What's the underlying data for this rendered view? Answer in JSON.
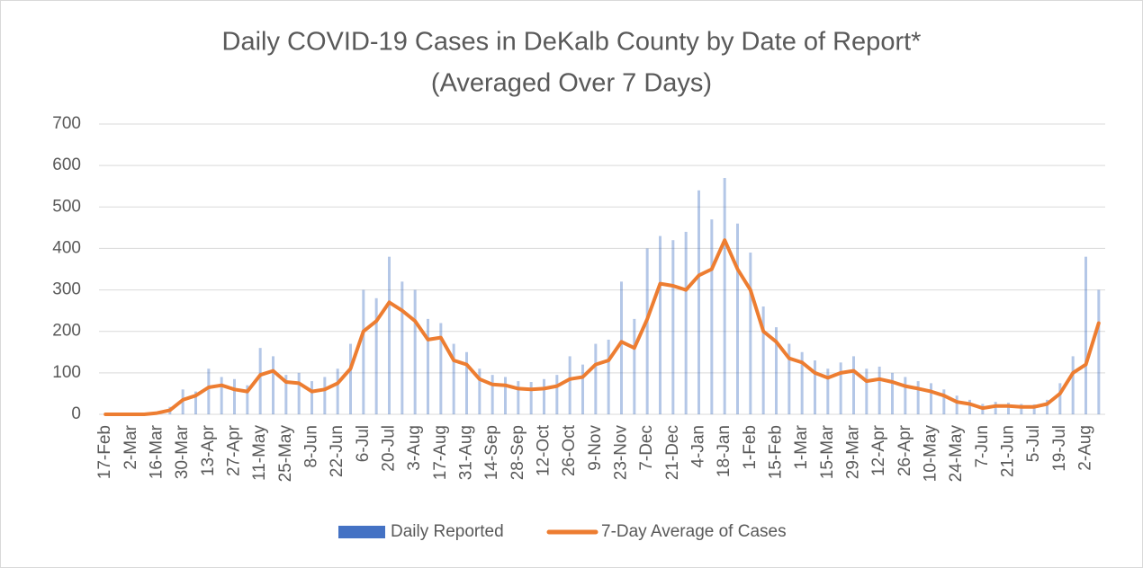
{
  "chart_data": {
    "type": "bar_line",
    "title": [
      "Daily COVID-19 Cases in DeKalb County by Date of Report*",
      "(Averaged Over 7 Days)"
    ],
    "categories": [
      "17-Feb",
      null,
      "2-Mar",
      null,
      "16-Mar",
      null,
      "30-Mar",
      null,
      "13-Apr",
      null,
      "27-Apr",
      null,
      "11-May",
      null,
      "25-May",
      null,
      "8-Jun",
      null,
      "22-Jun",
      null,
      "6-Jul",
      null,
      "20-Jul",
      null,
      "3-Aug",
      null,
      "17-Aug",
      null,
      "31-Aug",
      null,
      "14-Sep",
      null,
      "28-Sep",
      null,
      "12-Oct",
      null,
      "26-Oct",
      null,
      "9-Nov",
      null,
      "23-Nov",
      null,
      "7-Dec",
      null,
      "21-Dec",
      null,
      "4-Jan",
      null,
      "18-Jan",
      null,
      "1-Feb",
      null,
      "15-Feb",
      null,
      "1-Mar",
      null,
      "15-Mar",
      null,
      "29-Mar",
      null,
      "12-Apr",
      null,
      "26-Apr",
      null,
      "10-May",
      null,
      "24-May",
      null,
      "7-Jun",
      null,
      "21-Jun",
      null,
      "5-Jul",
      null,
      "19-Jul",
      null,
      "2-Aug",
      null
    ],
    "series": [
      {
        "name": "Daily Reported",
        "color": "#4472c4",
        "kind": "bar",
        "values": [
          0,
          0,
          1,
          2,
          6,
          18,
          60,
          55,
          110,
          90,
          85,
          70,
          160,
          140,
          95,
          100,
          80,
          90,
          110,
          170,
          300,
          280,
          380,
          320,
          300,
          230,
          220,
          170,
          150,
          110,
          95,
          90,
          80,
          78,
          85,
          95,
          140,
          120,
          170,
          180,
          320,
          230,
          400,
          430,
          420,
          440,
          540,
          470,
          570,
          460,
          390,
          260,
          210,
          170,
          150,
          130,
          110,
          125,
          140,
          110,
          115,
          100,
          90,
          80,
          75,
          60,
          45,
          35,
          25,
          30,
          28,
          25,
          24,
          35,
          75,
          140,
          380,
          300
        ]
      },
      {
        "name": "7-Day Average of Cases",
        "color": "#ed7d31",
        "kind": "line",
        "values": [
          0,
          0,
          0,
          0,
          3,
          10,
          35,
          45,
          65,
          70,
          60,
          55,
          95,
          105,
          78,
          75,
          55,
          60,
          75,
          110,
          200,
          225,
          270,
          250,
          225,
          180,
          185,
          130,
          120,
          85,
          72,
          70,
          62,
          60,
          62,
          68,
          85,
          90,
          120,
          130,
          175,
          160,
          230,
          315,
          310,
          300,
          335,
          350,
          420,
          350,
          300,
          200,
          175,
          135,
          125,
          100,
          88,
          100,
          105,
          80,
          85,
          78,
          68,
          62,
          55,
          45,
          30,
          25,
          15,
          20,
          20,
          18,
          18,
          25,
          50,
          100,
          120,
          220
        ]
      }
    ],
    "ylim": [
      0,
      700
    ],
    "yticks": [
      0,
      100,
      200,
      300,
      400,
      500,
      600,
      700
    ],
    "grid": true,
    "legend": "bottom"
  }
}
